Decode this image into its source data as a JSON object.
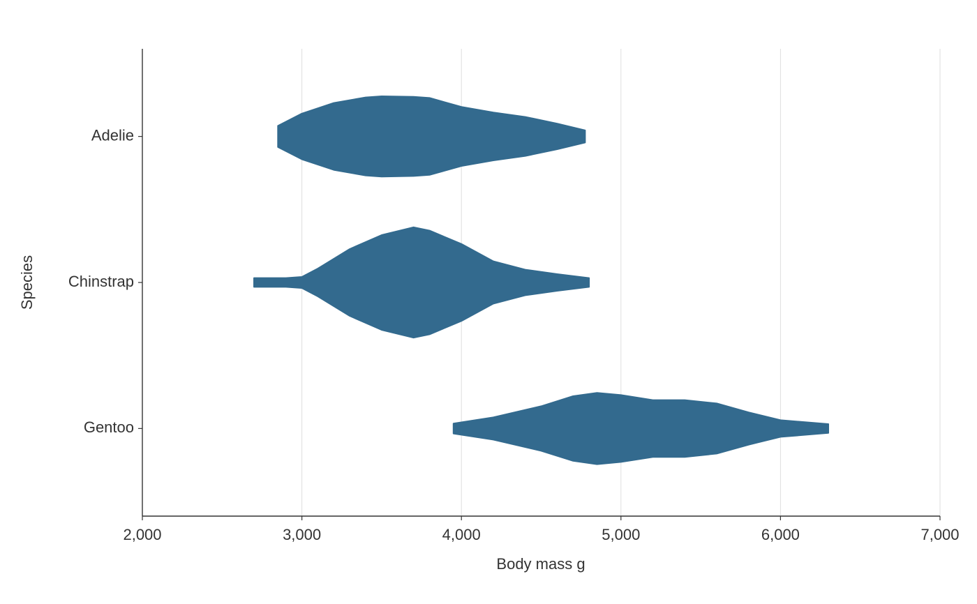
{
  "chart_data": {
    "type": "violin",
    "color": "#336a8e",
    "xlabel": "Body mass g",
    "ylabel": "Species",
    "xlim": [
      2000,
      7000
    ],
    "xticks": [
      {
        "value": 2000,
        "label": "2,000"
      },
      {
        "value": 3000,
        "label": "3,000"
      },
      {
        "value": 4000,
        "label": "4,000"
      },
      {
        "value": 5000,
        "label": "5,000"
      },
      {
        "value": 6000,
        "label": "6,000"
      },
      {
        "value": 7000,
        "label": "7,000"
      }
    ],
    "grid": true,
    "series": [
      {
        "name": "Adelie",
        "x": [
          2850,
          3000,
          3200,
          3400,
          3500,
          3700,
          3800,
          4000,
          4200,
          4400,
          4600,
          4775
        ],
        "density": [
          0.19,
          0.41,
          0.6,
          0.7,
          0.72,
          0.71,
          0.69,
          0.53,
          0.43,
          0.35,
          0.23,
          0.11
        ]
      },
      {
        "name": "Chinstrap",
        "x": [
          2700,
          2900,
          3000,
          3100,
          3300,
          3500,
          3700,
          3800,
          4000,
          4200,
          4400,
          4600,
          4800
        ],
        "density": [
          0.08,
          0.08,
          0.1,
          0.25,
          0.6,
          0.85,
          0.99,
          0.93,
          0.69,
          0.38,
          0.23,
          0.15,
          0.08
        ]
      },
      {
        "name": "Gentoo",
        "x": [
          3950,
          4200,
          4500,
          4700,
          4850,
          5000,
          5200,
          5400,
          5600,
          5800,
          6000,
          6300
        ],
        "density": [
          0.09,
          0.2,
          0.4,
          0.58,
          0.64,
          0.6,
          0.51,
          0.51,
          0.45,
          0.29,
          0.15,
          0.08
        ]
      }
    ]
  }
}
